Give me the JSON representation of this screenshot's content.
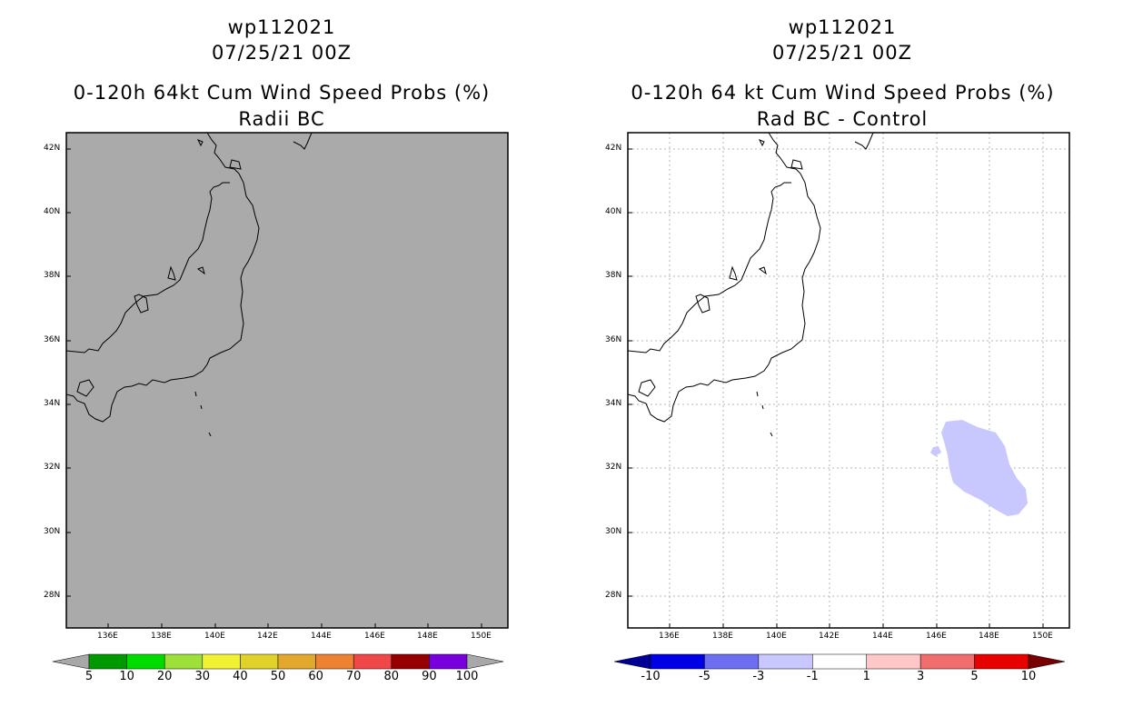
{
  "left": {
    "title_storm": "wp112021",
    "title_time": "07/25/21 00Z",
    "title_product": "0-120h 64kt Cum Wind Speed Probs (%)",
    "title_sub": "Radii BC",
    "background_color": "#aaaaaa",
    "colorbar": {
      "labels": [
        "5",
        "10",
        "20",
        "30",
        "40",
        "50",
        "60",
        "70",
        "80",
        "90",
        "100"
      ],
      "colors": [
        "#009a00",
        "#00dc00",
        "#9ee03a",
        "#f2f234",
        "#e0d228",
        "#e2a82e",
        "#ec8232",
        "#f04848",
        "#960000",
        "#7800dc"
      ],
      "end_color": "#a8a8a8"
    }
  },
  "right": {
    "title_storm": "wp112021",
    "title_time": "07/25/21 00Z",
    "title_product": "0-120h 64 kt Cum Wind Speed Probs (%)",
    "title_sub": "Rad BC - Control",
    "anomaly_color": "#c8c8ff",
    "colorbar": {
      "labels": [
        "-10",
        "-5",
        "-3",
        "-1",
        "1",
        "3",
        "5",
        "10"
      ],
      "colors": [
        "#0000e6",
        "#6e6ef0",
        "#c8c8ff",
        "#ffffff",
        "#ffc8c8",
        "#f06e6e",
        "#e60000"
      ],
      "end_low_color": "#000096",
      "end_high_color": "#780000"
    }
  },
  "axes": {
    "lat_labels": [
      "42N",
      "40N",
      "38N",
      "36N",
      "34N",
      "32N",
      "30N",
      "28N"
    ],
    "lon_labels": [
      "136E",
      "138E",
      "140E",
      "142E",
      "144E",
      "146E",
      "148E",
      "150E"
    ]
  }
}
